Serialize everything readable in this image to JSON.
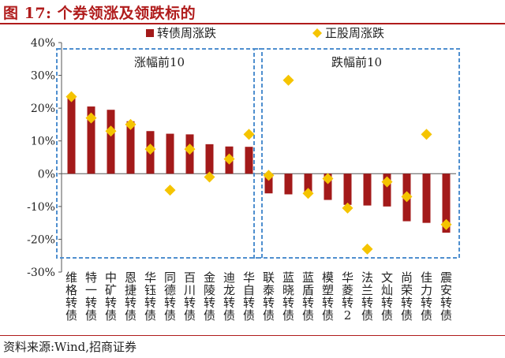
{
  "header": {
    "title": "图 17:  个券领涨及领跌标的"
  },
  "footer": {
    "source": "资料来源:Wind,招商证券"
  },
  "chart_data": {
    "type": "bar",
    "categories": [
      "维格转债",
      "特一转债",
      "中矿转债",
      "恩捷转债",
      "华钰转债",
      "同德转债",
      "百川转债",
      "金陵转债",
      "迪龙转债",
      "华自转债",
      "联泰转债",
      "蓝晓转债",
      "蓝盾转债",
      "模塑转债",
      "华菱转2",
      "法兰转债",
      "文灿转债",
      "尚荣转债",
      "佳力转债",
      "震安转债"
    ],
    "series": [
      {
        "name": "转债周涨跌",
        "kind": "bar",
        "color": "#a31a1a",
        "values": [
          24,
          20.5,
          19.5,
          16,
          13,
          12.2,
          12,
          9,
          8.3,
          8.2,
          -6,
          -6.3,
          -6.5,
          -8,
          -9.5,
          -9.7,
          -10,
          -14.5,
          -15,
          -18
        ]
      },
      {
        "name": "正股周涨跌",
        "kind": "marker",
        "color": "#f5c400",
        "values": [
          23.5,
          17,
          13,
          15,
          7.5,
          -5,
          7.5,
          -1,
          4.5,
          12,
          -0.5,
          28.5,
          -6,
          -1.5,
          -10.5,
          -23,
          -2.5,
          -7,
          12,
          -15.5
        ]
      }
    ],
    "groups": [
      {
        "label": "涨幅前10",
        "from": 0,
        "to": 9
      },
      {
        "label": "跌幅前10",
        "from": 10,
        "to": 19
      }
    ],
    "yticks": [
      "40%",
      "30%",
      "20%",
      "10%",
      "0%",
      "-10%",
      "-20%",
      "-30%"
    ],
    "ylim": [
      -30,
      40
    ],
    "legend_position": "top-center"
  }
}
